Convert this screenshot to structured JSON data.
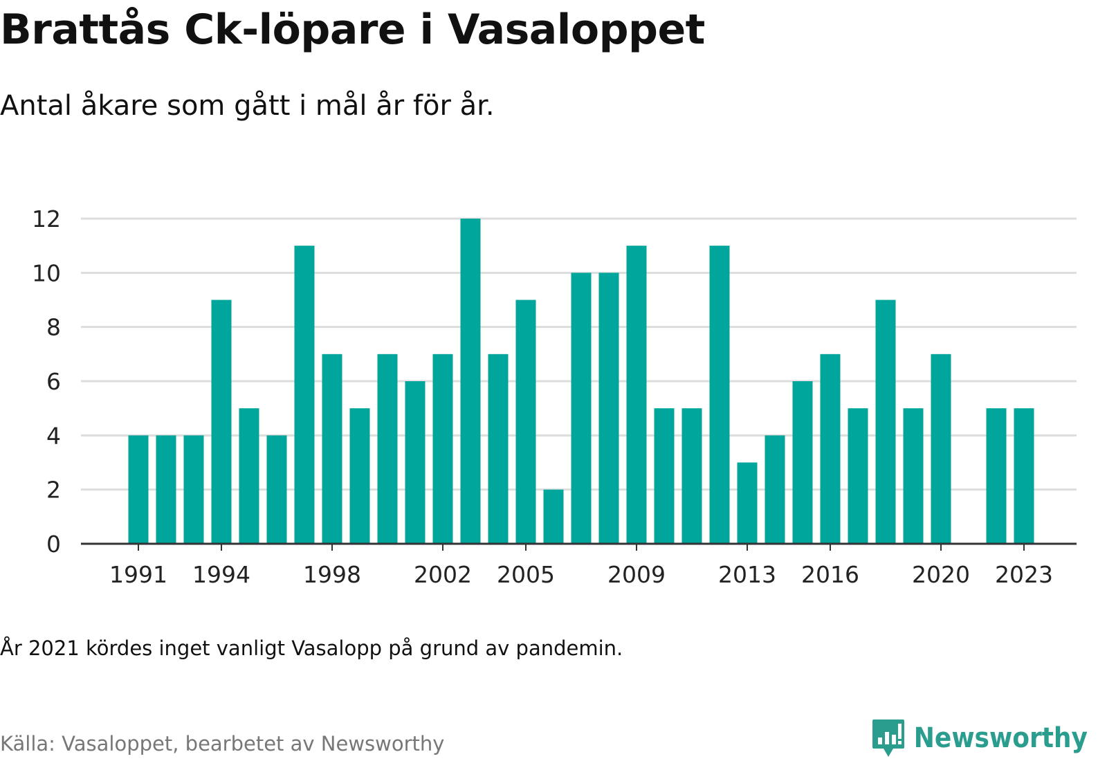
{
  "title": "Brattås Ck-löpare i Vasaloppet",
  "subtitle": "Antal åkare som gått i mål år för år.",
  "note": "År 2021 kördes inget vanligt Vasalopp på grund av pandemin.",
  "source": "Källa: Vasaloppet, bearbetet av Newsworthy",
  "brand": {
    "name": "Newsworthy",
    "icon": "newsworthy-logo-icon"
  },
  "colors": {
    "bar": "#00a59b",
    "grid": "#dddddd",
    "axis": "#333333",
    "brand": "#2a9d8f"
  },
  "chart_data": {
    "type": "bar",
    "x": [
      1991,
      1992,
      1993,
      1994,
      1995,
      1996,
      1997,
      1998,
      1999,
      2000,
      2001,
      2002,
      2003,
      2004,
      2005,
      2006,
      2007,
      2008,
      2009,
      2010,
      2011,
      2012,
      2013,
      2014,
      2015,
      2016,
      2017,
      2018,
      2019,
      2020,
      2021,
      2022,
      2023
    ],
    "values": [
      4,
      4,
      4,
      9,
      5,
      4,
      11,
      7,
      5,
      7,
      6,
      7,
      12,
      7,
      9,
      2,
      10,
      10,
      11,
      5,
      5,
      11,
      3,
      4,
      6,
      7,
      5,
      9,
      5,
      7,
      null,
      5,
      5
    ],
    "x_tick_labels": [
      "1991",
      "1994",
      "1998",
      "2002",
      "2005",
      "2009",
      "2013",
      "2016",
      "2020",
      "2023"
    ],
    "y_ticks": [
      0,
      2,
      4,
      6,
      8,
      10,
      12
    ],
    "ylim": [
      0,
      12
    ],
    "grid": true,
    "legend": "none"
  }
}
